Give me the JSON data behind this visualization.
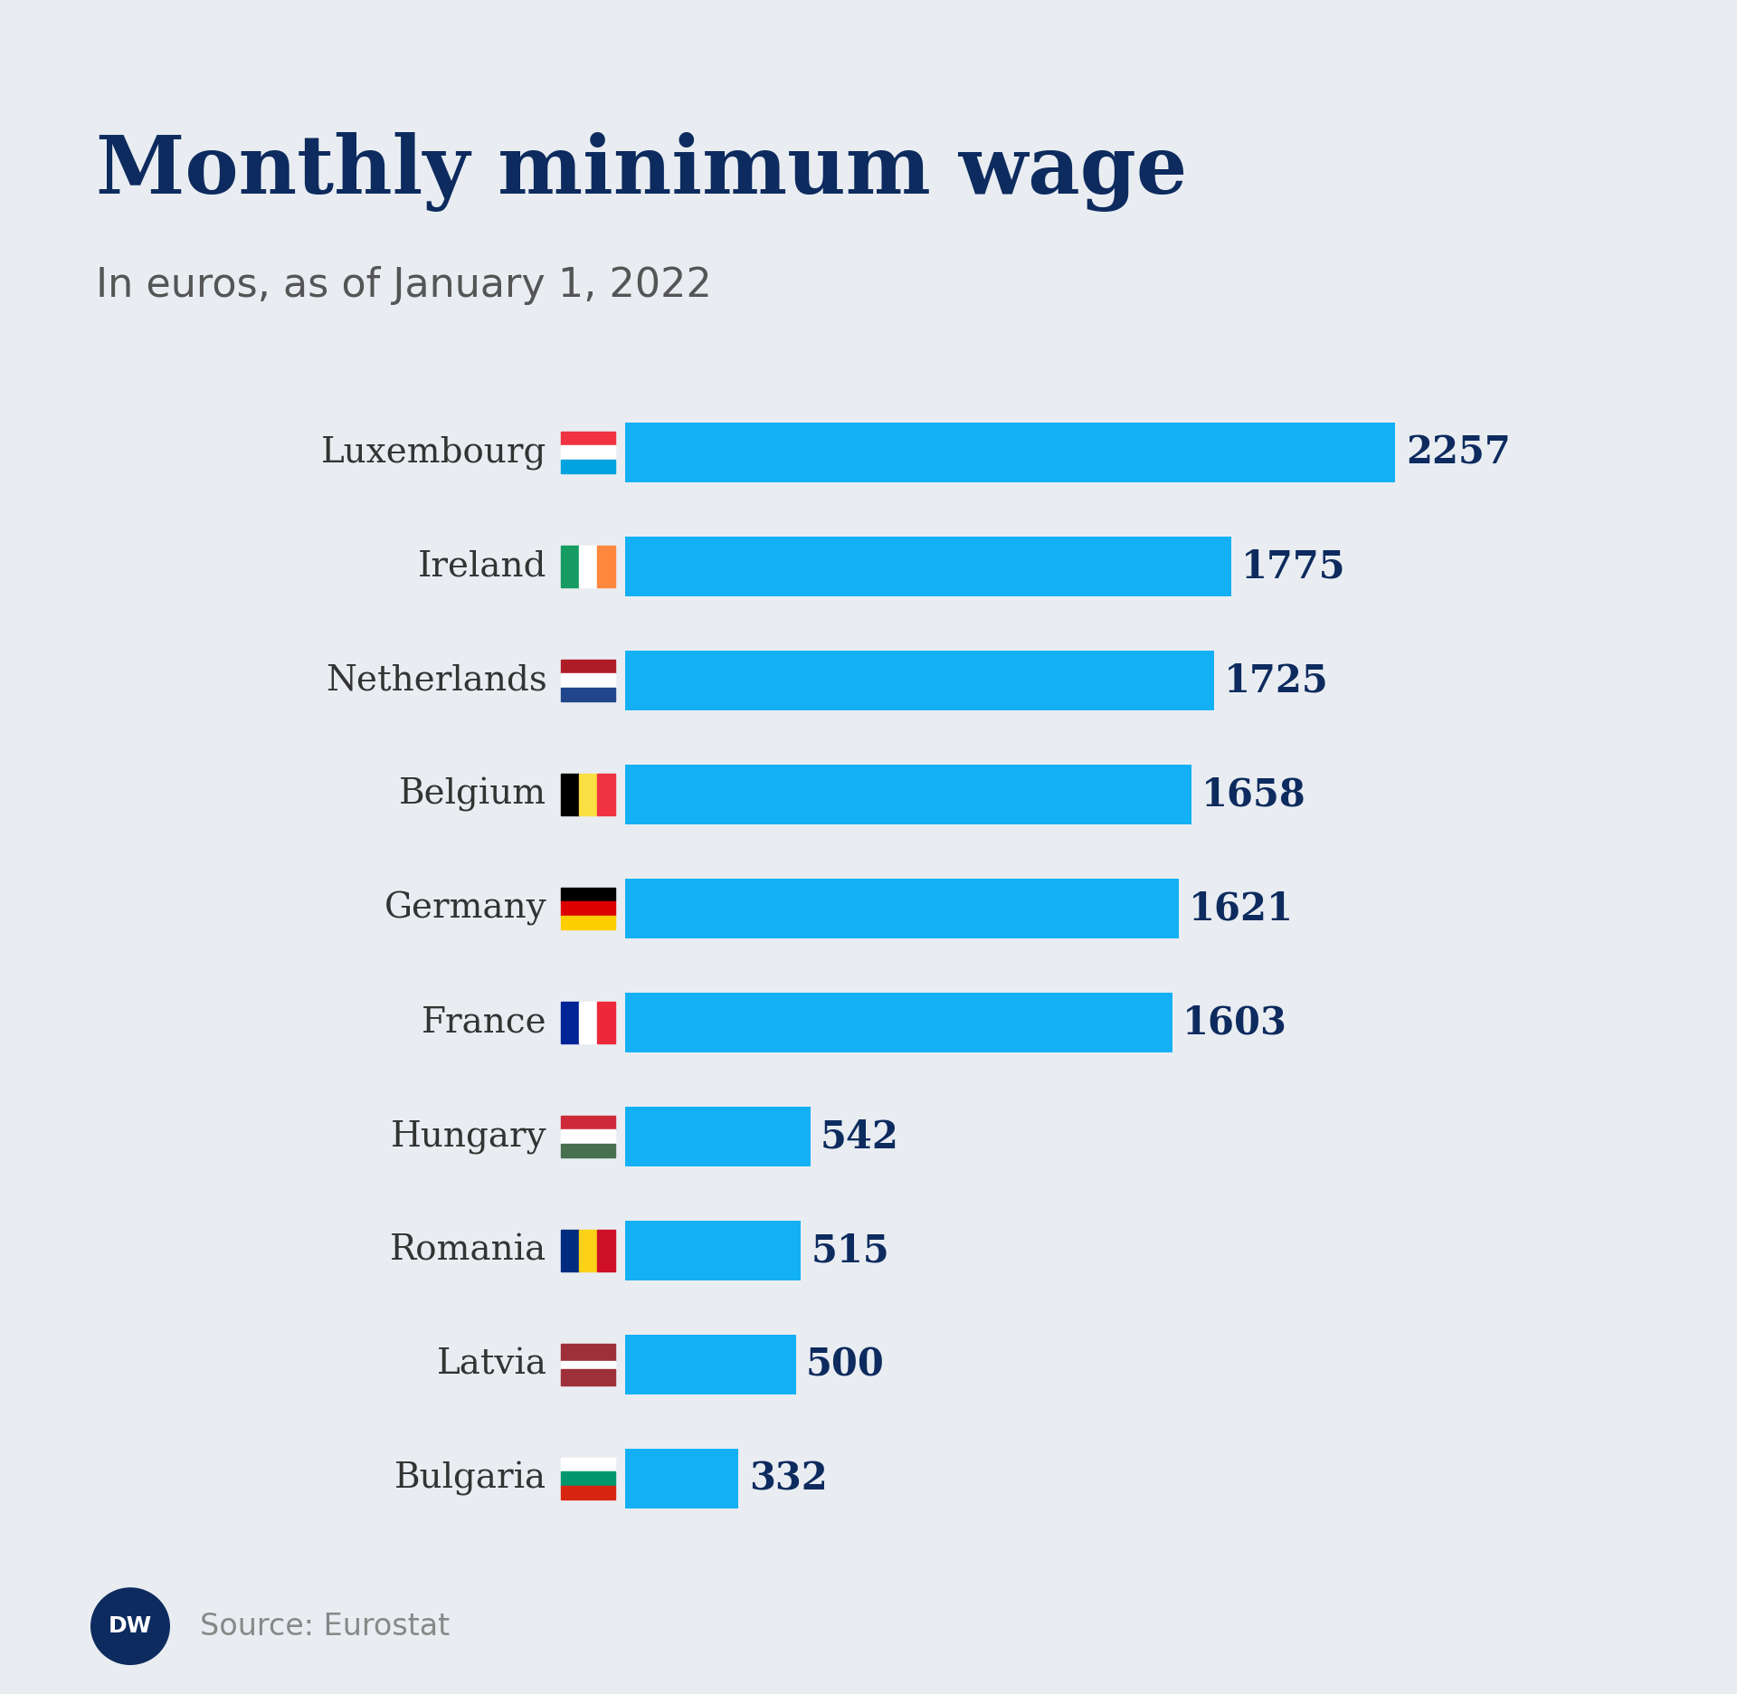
{
  "title": "Monthly minimum wage",
  "subtitle": "In euros, as of January 1, 2022",
  "source": "Source: Eurostat",
  "background_color": "#e9edf2",
  "bar_color": "#14b0f5",
  "title_color": "#0d2b5e",
  "subtitle_color": "#555555",
  "value_color": "#0d2b5e",
  "label_color": "#333333",
  "categories": [
    "Luxembourg",
    "Ireland",
    "Netherlands",
    "Belgium",
    "Germany",
    "France",
    "Hungary",
    "Romania",
    "Latvia",
    "Bulgaria"
  ],
  "values": [
    2257,
    1775,
    1725,
    1658,
    1621,
    1603,
    542,
    515,
    500,
    332
  ],
  "max_value": 2600,
  "bar_height": 0.52,
  "figsize": [
    19.2,
    18.72
  ]
}
